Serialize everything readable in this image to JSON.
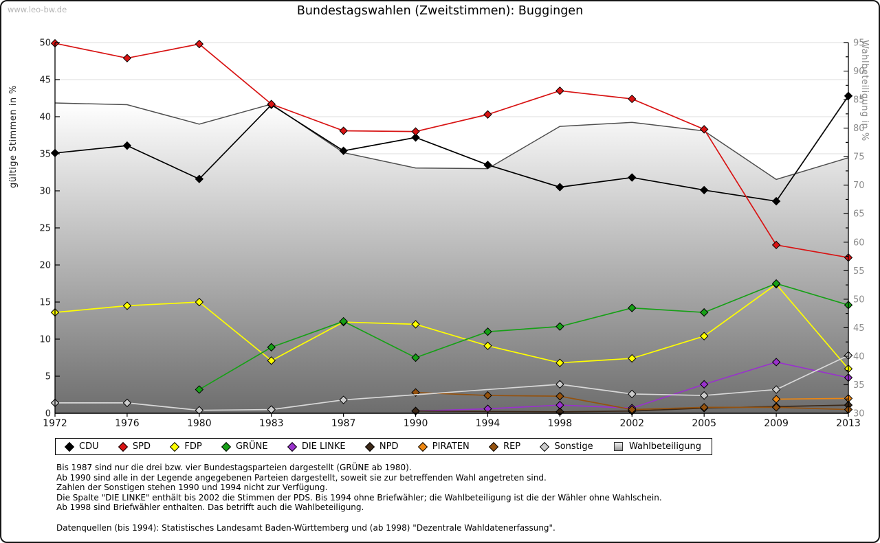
{
  "page": {
    "watermark": "www.leo-bw.de"
  },
  "chart_data": {
    "type": "line",
    "title": "Bundestagswahlen (Zweitstimmen): Buggingen",
    "x_categories": [
      1972,
      1976,
      1980,
      1983,
      1987,
      1990,
      1994,
      1998,
      2002,
      2005,
      2009,
      2013
    ],
    "left_axis": {
      "label": "gültige Stimmen in %",
      "min": 0,
      "max": 50,
      "step": 5
    },
    "right_axis": {
      "label": "Wahlbeteiligung in %",
      "min": 30,
      "max": 95,
      "step": 5
    },
    "grid": "horizontal",
    "legend_position": "bottom",
    "series": [
      {
        "name": "CDU",
        "color": "#000000",
        "axis": "left",
        "values": [
          35.1,
          36.1,
          31.6,
          41.6,
          35.4,
          37.2,
          33.5,
          30.5,
          31.8,
          30.1,
          28.6,
          42.8
        ]
      },
      {
        "name": "SPD",
        "color": "#d81414",
        "axis": "left",
        "values": [
          49.9,
          47.9,
          49.8,
          41.7,
          38.1,
          38.0,
          40.3,
          43.5,
          42.4,
          38.3,
          22.7,
          21.0
        ]
      },
      {
        "name": "FDP",
        "color": "#ffff00",
        "axis": "left",
        "values": [
          13.6,
          14.5,
          15.0,
          7.1,
          12.3,
          12.0,
          9.1,
          6.8,
          7.4,
          10.4,
          17.4,
          6.0
        ]
      },
      {
        "name": "GRÜNE",
        "color": "#17a017",
        "axis": "left",
        "values": [
          null,
          null,
          3.2,
          8.9,
          12.4,
          7.5,
          11.0,
          11.7,
          14.2,
          13.6,
          17.5,
          14.6
        ]
      },
      {
        "name": "DIE LINKE",
        "color": "#9932cc",
        "axis": "left",
        "values": [
          null,
          null,
          null,
          null,
          null,
          0.3,
          0.6,
          1.1,
          0.7,
          3.9,
          6.9,
          4.8
        ]
      },
      {
        "name": "NPD",
        "color": "#3c2817",
        "axis": "left",
        "values": [
          null,
          null,
          null,
          null,
          null,
          0.3,
          null,
          0.2,
          0.3,
          0.7,
          0.9,
          1.1
        ]
      },
      {
        "name": "PIRATEN",
        "color": "#ed8712",
        "axis": "left",
        "values": [
          null,
          null,
          null,
          null,
          null,
          null,
          null,
          null,
          null,
          null,
          1.9,
          2.0
        ]
      },
      {
        "name": "REP",
        "color": "#94520f",
        "axis": "left",
        "values": [
          null,
          null,
          null,
          null,
          null,
          2.8,
          2.4,
          2.3,
          0.5,
          0.8,
          0.8,
          0.5
        ]
      },
      {
        "name": "Sonstige",
        "color": "#cccccc",
        "line_color": "#d8d8d8",
        "axis": "left",
        "values": [
          1.4,
          1.4,
          0.4,
          0.5,
          1.8,
          null,
          null,
          3.9,
          2.6,
          2.4,
          3.2,
          7.8
        ]
      }
    ],
    "area_series": {
      "name": "Wahlbeteiligung",
      "axis": "right",
      "stroke": "#4f4f4f",
      "fill_top": "#ffffff",
      "fill_bottom": "#6d6d6d",
      "values": [
        84.4,
        84.1,
        80.7,
        84.2,
        75.7,
        73.0,
        72.9,
        80.3,
        81.0,
        79.5,
        71.0,
        74.8
      ]
    }
  },
  "notes": [
    "Bis 1987 sind nur die drei bzw. vier Bundestagsparteien dargestellt (GRÜNE ab 1980).",
    "Ab 1990 sind alle in der Legende angegebenen Parteien dargestellt, soweit sie zur betreffenden Wahl angetreten sind.",
    "Zahlen der Sonstigen stehen 1990 und 1994 nicht zur Verfügung.",
    "Die Spalte \"DIE LINKE\" enthält bis 2002 die Stimmen der PDS. Bis 1994 ohne Briefwähler; die Wahlbeteiligung ist die der Wähler ohne Wahlschein.",
    "Ab 1998 sind Briefwähler enthalten. Das betrifft auch die Wahlbeteiligung.",
    "",
    "Datenquellen (bis 1994): Statistisches Landesamt Baden-Württemberg und (ab 1998) \"Dezentrale Wahldatenerfassung\"."
  ]
}
